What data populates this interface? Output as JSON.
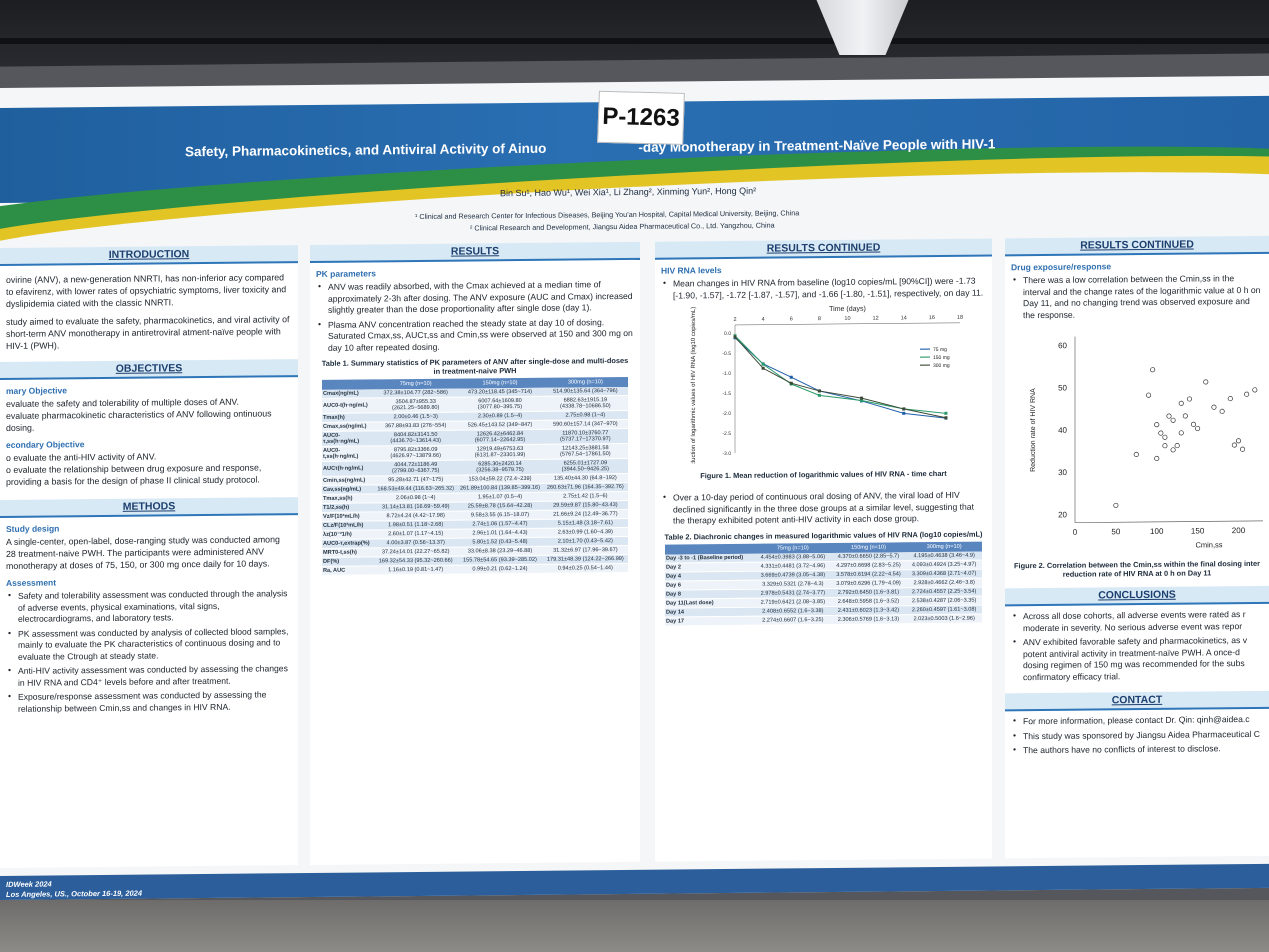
{
  "poster_id": "P-1263",
  "title": "Safety, Pharmacokinetics, and Antiviral Activity of Ainuo",
  "title_end": "-day Monotherapy in Treatment-Naïve People with HIV-1",
  "authors": "Bin Su¹, Hao Wu¹, Wei Xia¹, Li Zhang², Xinming Yun², Hong Qin²",
  "affiliation_1": "¹ Clinical and Research Center for Infectious Diseases, Beijing You’an Hospital, Capital Medical University, Beijing, China",
  "affiliation_2": "² Clinical Research and Development, Jiangsu Aidea Pharmaceutical Co., Ltd. Yangzhou, China",
  "introduction": {
    "heading": "INTRODUCTION",
    "p1": "ovirine (ANV), a new-generation NNRTI, has non-inferior acy compared to efavirenz, with lower rates of opsychiatric symptoms, liver toxicity and dyslipidemia ciated with the classic NNRTI.",
    "p2": "study aimed to evaluate the safety, pharmacokinetics, and viral activity of short-term ANV monotherapy in antiretroviral atment-naïve people with HIV-1 (PWH)."
  },
  "objectives": {
    "heading": "OBJECTIVES",
    "primary": "mary Objective",
    "p1": "evaluate the safety and tolerability of multiple doses of ANV.",
    "p2": "evaluate pharmacokinetic characteristics of ANV following ontinuous dosing.",
    "secondary": "econdary Objective",
    "s1": "o evaluate the anti-HIV activity of ANV.",
    "s2": "o evaluate the relationship between drug exposure and response, providing a basis for the design of phase II clinical study protocol."
  },
  "methods": {
    "heading": "METHODS",
    "design_h": "Study design",
    "design": "A single-center, open-label, dose-ranging study was conducted among 28 treatment-naive PWH. The participants were administered ANV monotherapy at doses of 75, 150, or 300 mg once daily for 10 days.",
    "assess_h": "Assessment",
    "b1": "Safety and tolerability assessment was conducted through the analysis of adverse events, physical examinations, vital signs, electrocardiograms, and laboratory tests.",
    "b2": "PK assessment was conducted by analysis of collected blood samples, mainly to evaluate the PK characteristics of continuous dosing and to evaluate the Ctrough at steady state.",
    "b3": "Anti-HIV activity assessment was conducted by assessing the changes in HIV RNA and CD4⁺ levels before and after treatment.",
    "b4": "Exposure/response assessment was conducted by assessing the relationship between Cmin,ss and changes in HIV RNA."
  },
  "results": {
    "heading": "RESULTS",
    "pk_h": "PK parameters",
    "b1": "ANV was readily absorbed, with the Cmax achieved at a median time of approximately 2-3h after dosing. The ANV exposure (AUC and Cmax) increased slightly greater than the dose proportionality after single dose (day 1).",
    "b2": "Plasma ANV concentration reached the steady state at day 10 of dosing. Saturated Cmax,ss, AUCτ,ss and Cmin,ss were observed at 150 and 300 mg on day 10 after repeated dosing.",
    "table1_caption": "Table 1. Summary statistics of PK parameters of ANV after single-dose and multi-doses in treatment-naive PWH",
    "table1_headers": [
      "",
      "75mg (n=10)",
      "150mg (n=10)",
      "300mg (n=10)"
    ],
    "table1_rows": [
      [
        "Cmax(ng/mL)",
        "372.38±104.77 (282~586)",
        "473.20±118.45 (345~714)",
        "514.90±135.64 (364~796)"
      ],
      [
        "AUC0-t(h·ng/mL)",
        "3504.87±955.33 (2621.25~5689.80)",
        "6007.64±1609.80 (3077.80~395.75)",
        "6882.63±1915.19 (4338.78~10686.50)"
      ],
      [
        "Tmax(h)",
        "2.00±0.46 (1.5~3)",
        "2.30±0.89 (1.5~4)",
        "2.75±0.98 (1~4)"
      ],
      [
        "Cmax,ss(ng/mL)",
        "367.88±93.83 (276~554)",
        "526.45±143.52 (349~847)",
        "590.60±157.14 (347~970)"
      ],
      [
        "AUC0-τ,ss(h·ng/mL)",
        "8404.82±3141.50 (4436.70~13614.43)",
        "12626.42±6462.84 (6077.14~22642.95)",
        "11870.10±3760.77 (5737.17~17370.97)"
      ],
      [
        "AUC0-t,ss(h·ng/mL)",
        "8795.82±3366.09 (4626.97~13879.66)",
        "12919.49±6753.63 (6131.87~23301.99)",
        "12143.25±3881.58 (5767.54~17861.50)"
      ],
      [
        "AUCτ(h·ng/mL)",
        "4044.72±1186.49 (2799.00~6367.75)",
        "6285.30±2420.14 (3256.38~9579.75)",
        "6255.01±1727.09 (3944.50~9426.25)"
      ],
      [
        "Cmin,ss(ng/mL)",
        "95.28±42.71 (47~175)",
        "153.04±59.22 (72.4~239)",
        "135.40±44.30 (64.8~192)"
      ],
      [
        "Cav,ss(ng/mL)",
        "168.53±49.44 (116.63~265.32)",
        "261.89±100.84 (139.85~399.16)",
        "260.63±71.96 (164.35~392.76)"
      ],
      [
        "Tmax,ss(h)",
        "2.06±0.98 (1~4)",
        "1.95±1.07 (0.5~4)",
        "2.75±1.42 (1.5~6)"
      ],
      [
        "T1/2,ss(h)",
        "31.14±13.81 (16.69~59.49)",
        "25.59±8.78 (15.64~42.28)",
        "29.59±9.87 (15.80~43.43)"
      ],
      [
        "Vz/F(10³mL/h)",
        "8.72±4.24 (4.42~17.98)",
        "9.58±3.55 (6.15~18.07)",
        "21.66±9.24 (12.49~36.77)"
      ],
      [
        "CLz/F(10³mL/h)",
        "1.98±0.51 (1.18~2.68)",
        "2.74±1.06 (1.57~4.47)",
        "5.15±1.48 (3.18~7.61)"
      ],
      [
        "λz(10⁻²1/h)",
        "2.60±1.07 (1.17~4.15)",
        "2.96±1.01 (1.64~4.43)",
        "2.63±0.99 (1.60~4.39)"
      ],
      [
        "AUC0-τ,extrap(%)",
        "4.00±3.87 (0.56~13.37)",
        "5.80±1.52 (0.43~5.48)",
        "2.10±1.70 (0.43~5.42)"
      ],
      [
        "MRT0-t,ss(h)",
        "37.24±14.01 (22.27~65.82)",
        "33.06±8.38 (23.29~46.88)",
        "31.32±6.97 (17.96~39.67)"
      ],
      [
        "DF(%)",
        "169.32±54.33 (95.32~260.66)",
        "155.78±54.65 (93.39~285.02)",
        "179.31±48.39 (124.22~266.99)"
      ],
      [
        "Ra, AUC",
        "1.16±0.19 (0.81~1.47)",
        "0.99±0.21 (0.62~1.24)",
        "0.94±0.25 (0.54~1.44)"
      ]
    ]
  },
  "results_continued": {
    "heading": "RESULTS CONTINUED",
    "hiv_h": "HIV RNA levels",
    "b1": "Mean changes in HIV RNA from baseline (log10 copies/mL [90%CI]) were -1.73 [-1.90, -1.57], -1.72 [-1.87, -1.57], and -1.66 [-1.80, -1.51], respectively, on day 11.",
    "fig1_caption": "Figure 1. Mean reduction of logarithmic values of HIV RNA - time chart",
    "b2": "Over a 10-day period of continuous oral dosing of ANV, the viral load of HIV declined significantly in the three dose groups at a similar level, suggesting that the therapy exhibited potent anti-HIV activity in each dose group.",
    "table2_caption": "Table 2. Diachronic changes in measured logarithmic values of HIV RNA (log10 copies/mL)",
    "table2_headers": [
      "",
      "75mg (n=10)",
      "150mg (n=10)",
      "300mg (n=10)"
    ],
    "table2_rows": [
      [
        "Day -3 to -1 (Baseline period)",
        "4.454±0.3983 (3.88~5.06)",
        "4.370±0.6650 (2.85~5.7)",
        "4.195±0.4638 (3.46~4.9)"
      ],
      [
        "Day 2",
        "4.331±0.4481 (3.72~4.96)",
        "4.297±0.6698 (2.83~5.25)",
        "4.093±0.4924 (3.25~4.97)"
      ],
      [
        "Day 4",
        "3.669±0.4739 (3.05~4.38)",
        "3.578±0.6194 (2.22~4.54)",
        "3.309±0.4368 (2.71~4.07)"
      ],
      [
        "Day 6",
        "3.329±0.5321 (2.78~4.3)",
        "3.079±0.6296 (1.79~4.09)",
        "2.928±0.4662 (2.46~3.8)"
      ],
      [
        "Day 8",
        "2.978±0.5431 (2.74~3.77)",
        "2.792±0.6450 (1.6~3.81)",
        "2.724±0.4557 (2.25~3.54)"
      ],
      [
        "Day 11(Last dose)",
        "2.719±0.6421 (2.08~3.85)",
        "2.648±0.5958 (1.6~3.52)",
        "2.538±0.4287 (2.06~3.35)"
      ],
      [
        "Day 14",
        "2.408±0.6552 (1.6~3.38)",
        "2.431±0.6023 (1.3~3.42)",
        "2.260±0.4597 (1.61~3.08)"
      ],
      [
        "Day 17",
        "2.274±0.6607 (1.6~3.25)",
        "2.306±0.5769 (1.6~3.13)",
        "2.023±0.5003 (1.6~2.96)"
      ]
    ]
  },
  "results_continued_2": {
    "heading": "RESULTS CONTINUED",
    "exp_h": "Drug exposure/response",
    "b1": "There was a low correlation between the Cmin,ss in the interval and the change rates of the logarithmic value at 0 h on Day 11, and no changing trend was observed exposure and the response.",
    "fig2_caption": "Figure 2. Correlation between the Cmin,ss within the final dosing inter reduction rate of HIV RNA at 0 h on Day 11"
  },
  "conclusions": {
    "heading": "CONCLUSIONS",
    "b1": "Across all dose cohorts, all adverse events were rated as r moderate in severity. No serious adverse event was repor",
    "b2": "ANV exhibited favorable safety and pharmacokinetics, as v potent antiviral activity in treatment-naïve PWH. A once-d dosing regimen of 150 mg was recommended for the subs confirmatory efficacy trial."
  },
  "contact": {
    "heading": "CONTACT",
    "b1": "For more information, please contact Dr. Qin: qinh@aidea.c",
    "b2": "This study was sponsored by Jiangsu Aidea Pharmaceutical C",
    "b3": "The authors have no conflicts of interest to disclose."
  },
  "footer": {
    "line1": "IDWeek 2024",
    "line2": "Los Angeles, US., October 16-19, 2024"
  },
  "chart_data": [
    {
      "type": "line",
      "title": "Time (days)",
      "ylabel": "Reduction of logarithmic values of HIV RNA (log10 copies/mL)",
      "x_ticks": [
        "2",
        "4",
        "6",
        "8",
        "10",
        "12",
        "14",
        "16",
        "18"
      ],
      "y_ticks": [
        "0.0",
        "-0.5",
        "-1.0",
        "-1.5",
        "-2.0",
        "-2.5",
        "-3.0"
      ],
      "xlim": [
        2,
        18
      ],
      "ylim": [
        -3.0,
        0.2
      ],
      "x": [
        2,
        4,
        6,
        8,
        11,
        14,
        17
      ],
      "series": [
        {
          "name": "75 mg",
          "color": "#1f5fa8",
          "values": [
            -0.12,
            -0.78,
            -1.12,
            -1.47,
            -1.73,
            -2.05,
            -2.18
          ]
        },
        {
          "name": "150 mg",
          "color": "#2b9a6a",
          "values": [
            -0.07,
            -0.79,
            -1.29,
            -1.58,
            -1.72,
            -1.94,
            -2.06
          ]
        },
        {
          "name": "300 mg",
          "color": "#3b4a36",
          "values": [
            -0.1,
            -0.89,
            -1.27,
            -1.47,
            -1.66,
            -1.94,
            -2.17
          ]
        }
      ]
    },
    {
      "type": "scatter",
      "xlabel": "Cmin,ss",
      "ylabel": "Reduction rate of HIV RNA",
      "x_ticks": [
        "0",
        "50",
        "100",
        "150",
        "200"
      ],
      "y_ticks": [
        "20",
        "30",
        "40",
        "50",
        "60"
      ],
      "xlim": [
        0,
        230
      ],
      "ylim": [
        18,
        62
      ],
      "x": [
        50,
        75,
        90,
        100,
        105,
        110,
        115,
        120,
        125,
        130,
        135,
        140,
        145,
        150,
        160,
        170,
        180,
        190,
        195,
        200,
        205,
        210,
        220,
        95,
        110,
        130,
        100,
        120
      ],
      "y": [
        22,
        34,
        48,
        41,
        39,
        38,
        43,
        42,
        36,
        39,
        43,
        47,
        41,
        40,
        51,
        45,
        44,
        47,
        36,
        37,
        35,
        48,
        49,
        54,
        36,
        46,
        33,
        35
      ]
    }
  ]
}
